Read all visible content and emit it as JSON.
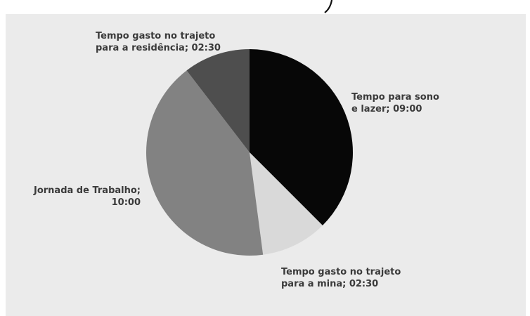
{
  "chart_data": {
    "type": "pie",
    "title": "",
    "start_angle_deg": 0,
    "direction": "clockwise",
    "slices": [
      {
        "label": [
          "Tempo para sono",
          "e lazer; 09:00"
        ],
        "value": 9.0,
        "color": "#070707"
      },
      {
        "label": [
          "Tempo gasto no trajeto",
          "para a mina; 02:30"
        ],
        "value": 2.5,
        "color": "#d9d9d9"
      },
      {
        "label": [
          "Jornada de Trabalho;",
          "10:00"
        ],
        "value": 10.0,
        "color": "#828282"
      },
      {
        "label": [
          "Tempo gasto no trajeto",
          "para a residência; 02:30"
        ],
        "value": 2.5,
        "color": "#4e4e4e"
      }
    ]
  }
}
